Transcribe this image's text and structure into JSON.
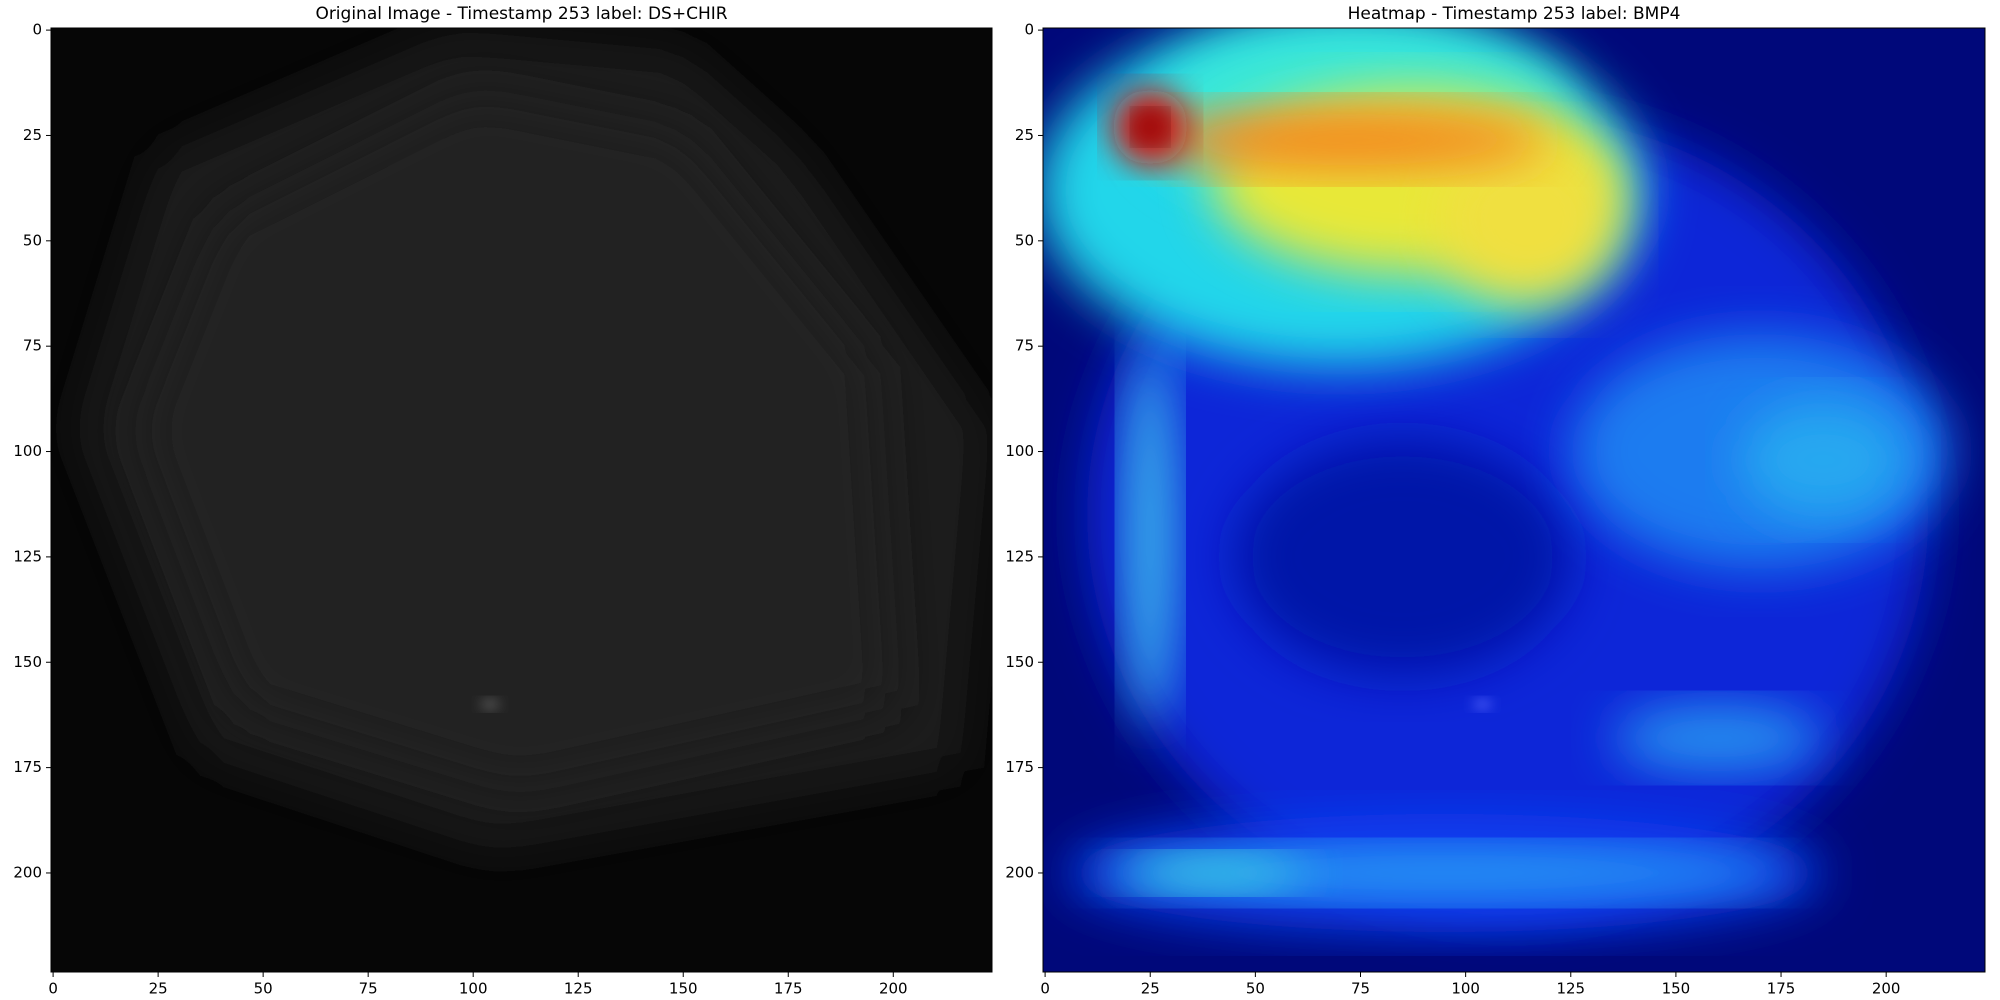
{
  "chart_data": [
    {
      "type": "image",
      "title": "Original Image - Timestamp 253 label: DS+CHIR",
      "xlim": [
        -0.5,
        223.5
      ],
      "ylim": [
        223.5,
        -0.5
      ],
      "xticks": [
        0,
        25,
        50,
        75,
        100,
        125,
        150,
        175,
        200
      ],
      "yticks": [
        0,
        25,
        50,
        75,
        100,
        125,
        150,
        175,
        200
      ]
    },
    {
      "type": "heatmap",
      "title": "Heatmap - Timestamp 253 label: BMP4",
      "xlim": [
        -0.5,
        223.5
      ],
      "ylim": [
        223.5,
        -0.5
      ],
      "xticks": [
        0,
        25,
        50,
        75,
        100,
        125,
        150,
        175,
        200
      ],
      "yticks": [
        0,
        25,
        50,
        75,
        100,
        125,
        150,
        175,
        200
      ]
    }
  ]
}
